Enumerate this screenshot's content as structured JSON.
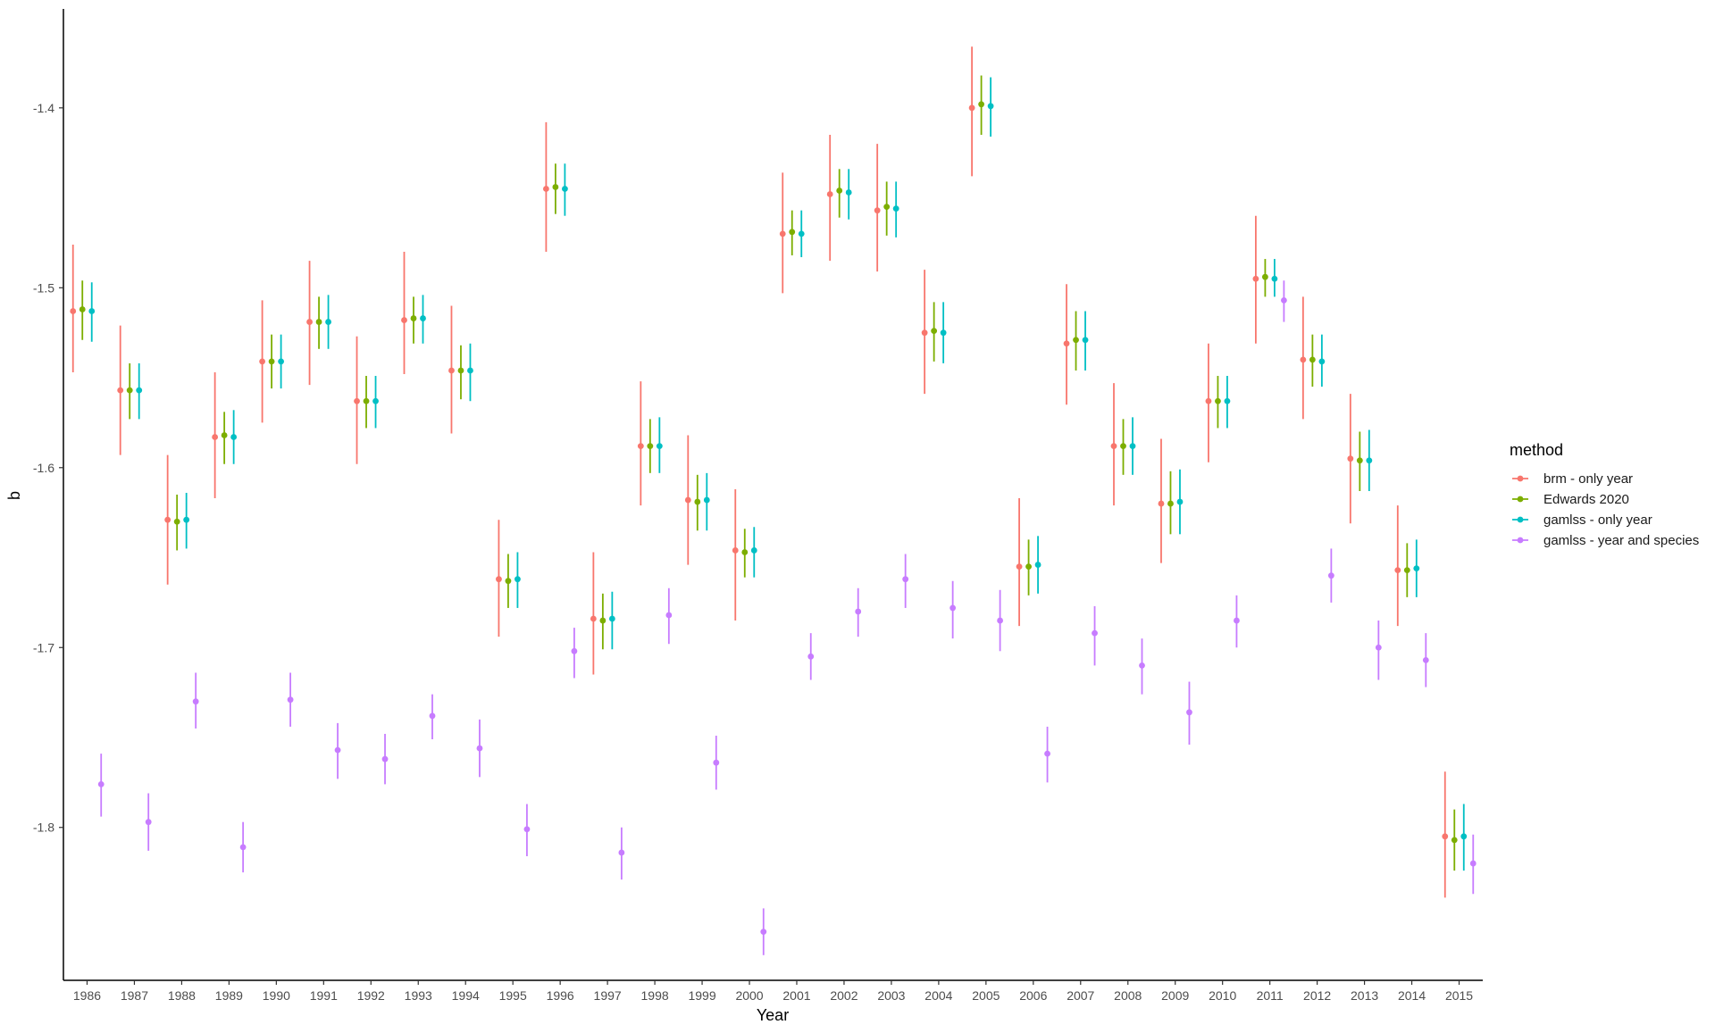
{
  "chart_data": {
    "type": "scatter",
    "subtype": "point-range (point estimate with interval) by year, dodged by method",
    "xlabel": "Year",
    "ylabel": "b",
    "categories": [
      "1986",
      "1987",
      "1988",
      "1989",
      "1990",
      "1991",
      "1992",
      "1993",
      "1994",
      "1995",
      "1996",
      "1997",
      "1998",
      "1999",
      "2000",
      "2001",
      "2002",
      "2003",
      "2004",
      "2005",
      "2006",
      "2007",
      "2008",
      "2009",
      "2010",
      "2011",
      "2012",
      "2013",
      "2014",
      "2015"
    ],
    "yticks": [
      -1.4,
      -1.5,
      -1.6,
      -1.7,
      -1.8
    ],
    "ylim": [
      -1.885,
      -1.345
    ],
    "grid": false,
    "legend_title": "method",
    "legend_position": "right",
    "series": [
      {
        "name": "brm - only year",
        "color": "#F8766D",
        "values": [
          -1.513,
          -1.557,
          -1.629,
          -1.583,
          -1.541,
          -1.519,
          -1.563,
          -1.518,
          -1.546,
          -1.662,
          -1.445,
          -1.684,
          -1.588,
          -1.618,
          -1.646,
          -1.47,
          -1.448,
          -1.457,
          -1.525,
          -1.4,
          -1.655,
          -1.531,
          -1.588,
          -1.62,
          -1.563,
          -1.495,
          -1.54,
          -1.595,
          -1.657,
          -1.805
        ],
        "lower": [
          -1.547,
          -1.593,
          -1.665,
          -1.617,
          -1.575,
          -1.554,
          -1.598,
          -1.548,
          -1.581,
          -1.694,
          -1.48,
          -1.715,
          -1.621,
          -1.654,
          -1.685,
          -1.503,
          -1.485,
          -1.491,
          -1.559,
          -1.438,
          -1.688,
          -1.565,
          -1.621,
          -1.653,
          -1.597,
          -1.531,
          -1.573,
          -1.631,
          -1.688,
          -1.839
        ],
        "upper": [
          -1.476,
          -1.521,
          -1.593,
          -1.547,
          -1.507,
          -1.485,
          -1.527,
          -1.48,
          -1.51,
          -1.629,
          -1.408,
          -1.647,
          -1.552,
          -1.582,
          -1.612,
          -1.436,
          -1.415,
          -1.42,
          -1.49,
          -1.366,
          -1.617,
          -1.498,
          -1.553,
          -1.584,
          -1.531,
          -1.46,
          -1.505,
          -1.559,
          -1.621,
          -1.769
        ]
      },
      {
        "name": "Edwards 2020",
        "color": "#7CAE00",
        "values": [
          -1.512,
          -1.557,
          -1.63,
          -1.582,
          -1.541,
          -1.519,
          -1.563,
          -1.517,
          -1.546,
          -1.663,
          -1.444,
          -1.685,
          -1.588,
          -1.619,
          -1.647,
          -1.469,
          -1.446,
          -1.455,
          -1.524,
          -1.398,
          -1.655,
          -1.529,
          -1.588,
          -1.62,
          -1.563,
          -1.494,
          -1.54,
          -1.596,
          -1.657,
          -1.807
        ],
        "lower": [
          -1.529,
          -1.573,
          -1.646,
          -1.598,
          -1.556,
          -1.534,
          -1.578,
          -1.531,
          -1.562,
          -1.678,
          -1.459,
          -1.701,
          -1.603,
          -1.635,
          -1.661,
          -1.482,
          -1.461,
          -1.471,
          -1.541,
          -1.415,
          -1.671,
          -1.546,
          -1.604,
          -1.637,
          -1.578,
          -1.505,
          -1.555,
          -1.613,
          -1.672,
          -1.824
        ],
        "upper": [
          -1.496,
          -1.542,
          -1.615,
          -1.569,
          -1.526,
          -1.505,
          -1.549,
          -1.505,
          -1.532,
          -1.648,
          -1.431,
          -1.67,
          -1.573,
          -1.604,
          -1.634,
          -1.457,
          -1.434,
          -1.441,
          -1.508,
          -1.382,
          -1.64,
          -1.513,
          -1.573,
          -1.602,
          -1.549,
          -1.484,
          -1.526,
          -1.58,
          -1.642,
          -1.79
        ]
      },
      {
        "name": "gamlss - only year",
        "color": "#00BFC4",
        "values": [
          -1.513,
          -1.557,
          -1.629,
          -1.583,
          -1.541,
          -1.519,
          -1.563,
          -1.517,
          -1.546,
          -1.662,
          -1.445,
          -1.684,
          -1.588,
          -1.618,
          -1.646,
          -1.47,
          -1.447,
          -1.456,
          -1.525,
          -1.399,
          -1.654,
          -1.529,
          -1.588,
          -1.619,
          -1.563,
          -1.495,
          -1.541,
          -1.596,
          -1.656,
          -1.805
        ],
        "lower": [
          -1.53,
          -1.573,
          -1.645,
          -1.598,
          -1.556,
          -1.534,
          -1.578,
          -1.531,
          -1.563,
          -1.678,
          -1.46,
          -1.701,
          -1.603,
          -1.635,
          -1.661,
          -1.483,
          -1.462,
          -1.472,
          -1.542,
          -1.416,
          -1.67,
          -1.546,
          -1.604,
          -1.637,
          -1.578,
          -1.505,
          -1.555,
          -1.613,
          -1.672,
          -1.824
        ],
        "upper": [
          -1.497,
          -1.542,
          -1.614,
          -1.568,
          -1.526,
          -1.504,
          -1.549,
          -1.504,
          -1.531,
          -1.647,
          -1.431,
          -1.669,
          -1.572,
          -1.603,
          -1.633,
          -1.457,
          -1.434,
          -1.441,
          -1.508,
          -1.383,
          -1.638,
          -1.513,
          -1.572,
          -1.601,
          -1.549,
          -1.484,
          -1.526,
          -1.579,
          -1.64,
          -1.787
        ]
      },
      {
        "name": "gamlss - year and species",
        "color": "#C77CFF",
        "values": [
          -1.776,
          -1.797,
          -1.73,
          -1.811,
          -1.729,
          -1.757,
          -1.762,
          -1.738,
          -1.756,
          -1.801,
          -1.702,
          -1.814,
          -1.682,
          -1.764,
          -1.858,
          -1.705,
          -1.68,
          -1.662,
          -1.678,
          -1.685,
          -1.759,
          -1.692,
          -1.71,
          -1.736,
          -1.685,
          -1.507,
          -1.66,
          -1.7,
          -1.707,
          -1.82
        ],
        "lower": [
          -1.794,
          -1.813,
          -1.745,
          -1.825,
          -1.744,
          -1.773,
          -1.776,
          -1.751,
          -1.772,
          -1.816,
          -1.717,
          -1.829,
          -1.698,
          -1.779,
          -1.871,
          -1.718,
          -1.694,
          -1.678,
          -1.695,
          -1.702,
          -1.775,
          -1.71,
          -1.726,
          -1.754,
          -1.7,
          -1.519,
          -1.675,
          -1.718,
          -1.722,
          -1.837
        ],
        "upper": [
          -1.759,
          -1.781,
          -1.714,
          -1.797,
          -1.714,
          -1.742,
          -1.748,
          -1.726,
          -1.74,
          -1.787,
          -1.689,
          -1.8,
          -1.667,
          -1.749,
          -1.845,
          -1.692,
          -1.667,
          -1.648,
          -1.663,
          -1.668,
          -1.744,
          -1.677,
          -1.695,
          -1.719,
          -1.671,
          -1.496,
          -1.645,
          -1.685,
          -1.692,
          -1.804
        ]
      }
    ]
  }
}
